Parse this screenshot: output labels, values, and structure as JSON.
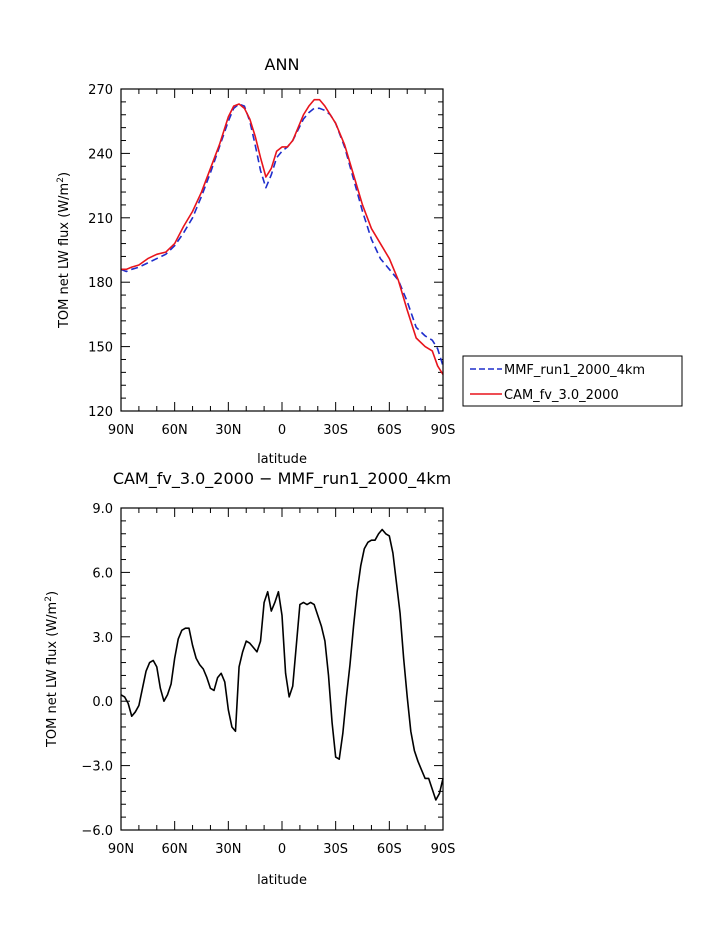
{
  "chart_data": [
    {
      "type": "line",
      "title": "ANN",
      "xlabel": "latitude",
      "ylabel": "TOM net LW flux (W/m²)",
      "ylim": [
        120,
        270
      ],
      "xlim": [
        90,
        -90
      ],
      "x_ticks": [
        90,
        60,
        30,
        0,
        -30,
        -60,
        -90
      ],
      "x_tick_labels": [
        "90N",
        "60N",
        "30N",
        "0",
        "30S",
        "60S",
        "90S"
      ],
      "y_ticks": [
        120,
        150,
        180,
        210,
        240,
        270
      ],
      "y_tick_labels": [
        "120",
        "150",
        "180",
        "210",
        "240",
        "270"
      ],
      "grid": false,
      "legend_placement": "right",
      "series": [
        {
          "name": "MMF_run1_2000_4km",
          "color": "#1f2ecc",
          "dash": "dashed",
          "x": [
            90,
            87,
            84,
            80,
            75,
            70,
            65,
            60,
            55,
            50,
            45,
            40,
            35,
            30,
            27,
            24,
            21,
            18,
            15,
            12,
            9,
            6,
            3,
            0,
            -3,
            -6,
            -9,
            -12,
            -15,
            -18,
            -21,
            -24,
            -27,
            -30,
            -35,
            -40,
            -45,
            -50,
            -55,
            -60,
            -65,
            -70,
            -75,
            -80,
            -84,
            -87,
            -90
          ],
          "y": [
            186,
            185,
            186,
            187,
            189,
            191,
            193,
            197,
            203,
            210,
            220,
            231,
            243,
            255,
            261,
            263,
            262,
            255,
            244,
            232,
            224,
            230,
            238,
            241,
            243,
            246,
            251,
            256,
            259,
            261,
            261,
            260,
            258,
            254,
            243,
            228,
            213,
            200,
            191,
            186,
            181,
            171,
            159,
            155,
            153,
            149,
            141
          ]
        },
        {
          "name": "CAM_fv_3.0_2000",
          "color": "#e8141c",
          "dash": "solid",
          "x": [
            90,
            87,
            84,
            80,
            75,
            70,
            65,
            60,
            55,
            50,
            45,
            40,
            35,
            30,
            27,
            24,
            21,
            18,
            15,
            12,
            9,
            6,
            3,
            0,
            -3,
            -6,
            -9,
            -12,
            -15,
            -18,
            -21,
            -24,
            -27,
            -30,
            -35,
            -40,
            -45,
            -50,
            -55,
            -60,
            -65,
            -70,
            -75,
            -80,
            -84,
            -87,
            -90
          ],
          "y": [
            186,
            186,
            187,
            188,
            191,
            193,
            194,
            198,
            206,
            213,
            222,
            233,
            244,
            257,
            262,
            263,
            261,
            256,
            248,
            238,
            229,
            233,
            241,
            243,
            243,
            246,
            252,
            258,
            262,
            265,
            265,
            262,
            258,
            254,
            244,
            230,
            216,
            205,
            198,
            191,
            181,
            167,
            154,
            150,
            148,
            141,
            137
          ]
        }
      ]
    },
    {
      "type": "line",
      "title": "CAM_fv_3.0_2000 − MMF_run1_2000_4km",
      "xlabel": "latitude",
      "ylabel": "TOM net LW flux (W/m²)",
      "ylim": [
        -6.0,
        9.0
      ],
      "xlim": [
        90,
        -90
      ],
      "x_ticks": [
        90,
        60,
        30,
        0,
        -30,
        -60,
        -90
      ],
      "x_tick_labels": [
        "90N",
        "60N",
        "30N",
        "0",
        "30S",
        "60S",
        "90S"
      ],
      "y_ticks": [
        -6,
        -3,
        0,
        3,
        6,
        9
      ],
      "y_tick_labels": [
        "−6.0",
        "−3.0",
        "0.0",
        "3.0",
        "6.0",
        "9.0"
      ],
      "grid": false,
      "series": [
        {
          "color": "#000000",
          "dash": "solid",
          "x": [
            90,
            88,
            86,
            84,
            82,
            80,
            78,
            76,
            74,
            72,
            70,
            68,
            66,
            64,
            62,
            60,
            58,
            56,
            54,
            52,
            50,
            48,
            46,
            44,
            42,
            40,
            38,
            36,
            34,
            32,
            30,
            28,
            26,
            24,
            22,
            20,
            18,
            16,
            14,
            12,
            10,
            8,
            6,
            4,
            2,
            0,
            -2,
            -4,
            -6,
            -8,
            -10,
            -12,
            -14,
            -16,
            -18,
            -20,
            -22,
            -24,
            -26,
            -28,
            -30,
            -32,
            -34,
            -36,
            -38,
            -40,
            -42,
            -44,
            -46,
            -48,
            -50,
            -52,
            -54,
            -56,
            -58,
            -60,
            -62,
            -64,
            -66,
            -68,
            -70,
            -72,
            -74,
            -76,
            -78,
            -80,
            -82,
            -84,
            -86,
            -88,
            -90
          ],
          "y": [
            0.3,
            0.2,
            -0.1,
            -0.7,
            -0.5,
            -0.2,
            0.6,
            1.4,
            1.8,
            1.9,
            1.6,
            0.6,
            0.0,
            0.3,
            0.8,
            2.0,
            2.9,
            3.3,
            3.4,
            3.4,
            2.6,
            2.0,
            1.7,
            1.5,
            1.1,
            0.6,
            0.5,
            1.1,
            1.3,
            0.9,
            -0.4,
            -1.2,
            -1.4,
            1.6,
            2.3,
            2.8,
            2.7,
            2.5,
            2.3,
            2.8,
            4.6,
            5.1,
            4.2,
            4.6,
            5.1,
            4.0,
            1.3,
            0.2,
            0.7,
            2.6,
            4.5,
            4.6,
            4.5,
            4.6,
            4.5,
            4.0,
            3.5,
            2.8,
            1.2,
            -1.0,
            -2.6,
            -2.7,
            -1.5,
            0.2,
            1.7,
            3.5,
            5.1,
            6.3,
            7.1,
            7.4,
            7.5,
            7.5,
            7.8,
            8.0,
            7.8,
            7.7,
            6.9,
            5.5,
            4.1,
            2.0,
            0.2,
            -1.4,
            -2.3,
            -2.8,
            -3.2,
            -3.6,
            -3.6,
            -4.1,
            -4.6,
            -4.3,
            -3.6
          ]
        }
      ]
    }
  ]
}
